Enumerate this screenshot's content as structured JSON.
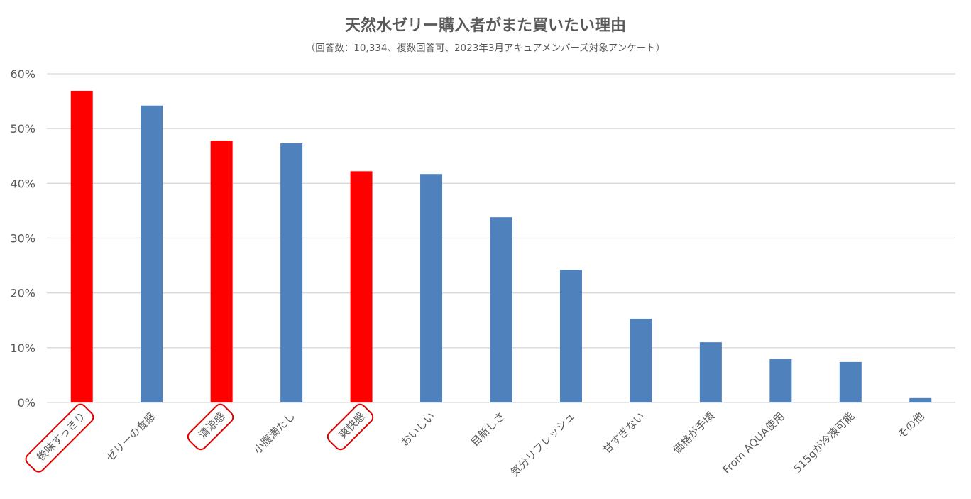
{
  "chart_data": {
    "type": "bar",
    "title": "天然水ゼリー購入者がまた買いたい理由",
    "subtitle": "（回答数：10,334、複数回答可、2023年3月アキュアメンバーズ対象アンケート）",
    "categories": [
      "後味すっきり",
      "ゼリーの食感",
      "清涼感",
      "小腹満たし",
      "爽快感",
      "おいしい",
      "目新しさ",
      "気分リフレッシュ",
      "甘すぎない",
      "価格が手頃",
      "From AQUA使用",
      "515gが冷凍可能",
      "その他"
    ],
    "values": [
      56.9,
      54.2,
      47.8,
      47.3,
      42.2,
      41.7,
      33.8,
      24.2,
      15.3,
      11.0,
      7.9,
      7.4,
      0.8
    ],
    "highlighted": [
      true,
      false,
      true,
      false,
      true,
      false,
      false,
      false,
      false,
      false,
      false,
      false,
      false
    ],
    "ylim": [
      0,
      60
    ],
    "yticks": [
      0,
      10,
      20,
      30,
      40,
      50,
      60
    ],
    "ytick_suffix": "%",
    "grid": true,
    "xlabel": "",
    "ylabel": "",
    "colors": {
      "bar": "#4F81BD",
      "highlight": "#FF0000",
      "highlight_outline": "#E00000",
      "grid": "#D9D9D9",
      "text": "#595959"
    }
  }
}
